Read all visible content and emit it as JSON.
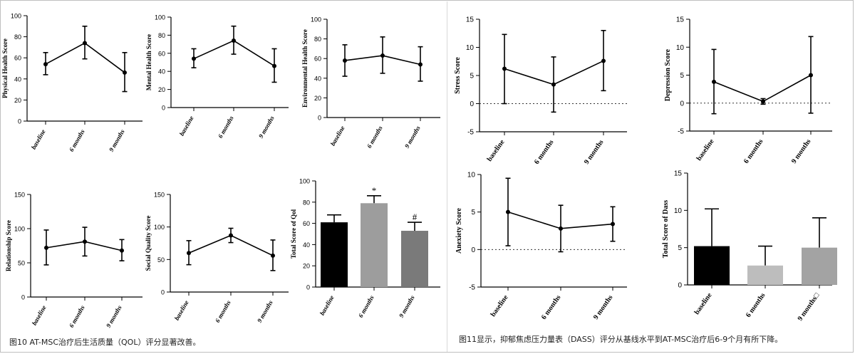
{
  "captions": {
    "fig10": "图10 AT-MSC治疗后生活质量（QOL）评分显著改善。",
    "fig11": "图11显示，抑郁焦虑压力量表（DASS）评分从基线水平到AT-MSC治疗后6-9个月有所下降。"
  },
  "chart_data": [
    {
      "id": "physical",
      "type": "line",
      "ylabel": "Physical Health Score",
      "categories": [
        "baseline",
        "6 months",
        "9 months"
      ],
      "ylim": [
        0,
        100
      ],
      "yticks": [
        0,
        20,
        40,
        60,
        80,
        100
      ],
      "ytick_labels": [
        "0",
        "20",
        "40",
        "60",
        "80",
        "100"
      ],
      "values": [
        54,
        74,
        46
      ],
      "err_low": [
        44,
        59,
        28
      ],
      "err_high": [
        65,
        90,
        65
      ]
    },
    {
      "id": "mental",
      "type": "line",
      "ylabel": "Mental Health Score",
      "categories": [
        "baseline",
        "6 months",
        "9 months"
      ],
      "ylim": [
        0,
        100
      ],
      "yticks": [
        0,
        20,
        40,
        60,
        80,
        100
      ],
      "ytick_labels": [
        "0",
        "20",
        "40",
        "60",
        "80",
        "100"
      ],
      "values": [
        54,
        74,
        46
      ],
      "err_low": [
        44,
        59,
        28
      ],
      "err_high": [
        65,
        90,
        65
      ]
    },
    {
      "id": "environmental",
      "type": "line",
      "ylabel": "Environmental Health Score",
      "categories": [
        "baseline",
        "6 months",
        "9 months"
      ],
      "ylim": [
        0,
        100
      ],
      "yticks": [
        0,
        20,
        40,
        60,
        80,
        100
      ],
      "ytick_labels": [
        "0",
        "20",
        "40",
        "60",
        "80",
        "100"
      ],
      "values": [
        58,
        63,
        54
      ],
      "err_low": [
        42,
        45,
        37
      ],
      "err_high": [
        74,
        82,
        72
      ]
    },
    {
      "id": "relationship",
      "type": "line",
      "ylabel": "Relationship Score",
      "categories": [
        "baseline",
        "6 months",
        "9 months"
      ],
      "ylim": [
        0,
        150
      ],
      "yticks": [
        0,
        50,
        100,
        150
      ],
      "ytick_labels": [
        "0",
        "50",
        "100",
        "150"
      ],
      "values": [
        72,
        81,
        68
      ],
      "err_low": [
        47,
        60,
        53
      ],
      "err_high": [
        98,
        102,
        84
      ]
    },
    {
      "id": "social",
      "type": "line",
      "ylabel": "Social Quality Score",
      "categories": [
        "baseline",
        "6 months",
        "9 months"
      ],
      "ylim": [
        0,
        150
      ],
      "yticks": [
        0,
        50,
        100,
        150
      ],
      "ytick_labels": [
        "0",
        "50",
        "100",
        "150"
      ],
      "values": [
        60,
        87,
        56
      ],
      "err_low": [
        42,
        76,
        33
      ],
      "err_high": [
        79,
        98,
        80
      ]
    },
    {
      "id": "qol_total",
      "type": "bar",
      "ylabel": "Total Score of Qol",
      "categories": [
        "baseline",
        "6 months",
        "9 months"
      ],
      "ylim": [
        0,
        100
      ],
      "yticks": [
        0,
        20,
        40,
        60,
        80,
        100
      ],
      "ytick_labels": [
        "0",
        "20",
        "40",
        "60",
        "80",
        "100"
      ],
      "values": [
        61,
        79,
        53
      ],
      "err_high": [
        68,
        86,
        61
      ],
      "bar_colors": [
        "#000000",
        "#9d9d9d",
        "#7a7a7a"
      ],
      "annotations": [
        "",
        "*",
        "#"
      ]
    },
    {
      "id": "stress",
      "type": "line",
      "ylabel": "Stress Score",
      "categories": [
        "baseline",
        "6 months",
        "9 months"
      ],
      "ylim": [
        -5,
        15
      ],
      "yticks": [
        -5,
        0,
        5,
        10,
        15
      ],
      "ytick_labels": [
        "-5",
        "0",
        "5",
        "10",
        "15"
      ],
      "values": [
        6.2,
        3.4,
        7.6
      ],
      "err_low": [
        0.0,
        -1.5,
        2.3
      ],
      "err_high": [
        12.3,
        8.3,
        13.0
      ],
      "zero_line": true
    },
    {
      "id": "depression",
      "type": "line",
      "ylabel": "Depression Score",
      "categories": [
        "baseline",
        "6 months",
        "9 months"
      ],
      "ylim": [
        -5,
        15
      ],
      "yticks": [
        -5,
        0,
        5,
        10,
        15
      ],
      "ytick_labels": [
        "-5",
        "0",
        "5",
        "10",
        "15"
      ],
      "values": [
        3.8,
        0.3,
        5.0
      ],
      "err_low": [
        -1.9,
        -0.2,
        -1.8
      ],
      "err_high": [
        9.6,
        0.8,
        11.9
      ],
      "zero_line": true
    },
    {
      "id": "anxiety",
      "type": "line",
      "ylabel": "Anexiety Score",
      "categories": [
        "baseline",
        "6 months",
        "9 months"
      ],
      "ylim": [
        -5,
        10
      ],
      "yticks": [
        -5,
        0,
        5,
        10
      ],
      "ytick_labels": [
        "-5",
        "0",
        "5",
        "10"
      ],
      "values": [
        5.0,
        2.8,
        3.4
      ],
      "err_low": [
        0.5,
        -0.3,
        1.1
      ],
      "err_high": [
        9.5,
        5.9,
        5.7
      ],
      "zero_line": true
    },
    {
      "id": "dass_total",
      "type": "bar",
      "ylabel": "Total Score of Dass",
      "categories": [
        "baseline",
        "6 months",
        "9 months□"
      ],
      "ylim": [
        0,
        15
      ],
      "yticks": [
        0,
        5,
        10,
        15
      ],
      "ytick_labels": [
        "0",
        "5",
        "10",
        "15"
      ],
      "values": [
        5.2,
        2.6,
        5.0
      ],
      "err_high": [
        10.2,
        5.2,
        9.0
      ],
      "bar_colors": [
        "#000000",
        "#bdbdbd",
        "#a3a3a3"
      ],
      "annotations": [
        "",
        "",
        ""
      ]
    }
  ]
}
